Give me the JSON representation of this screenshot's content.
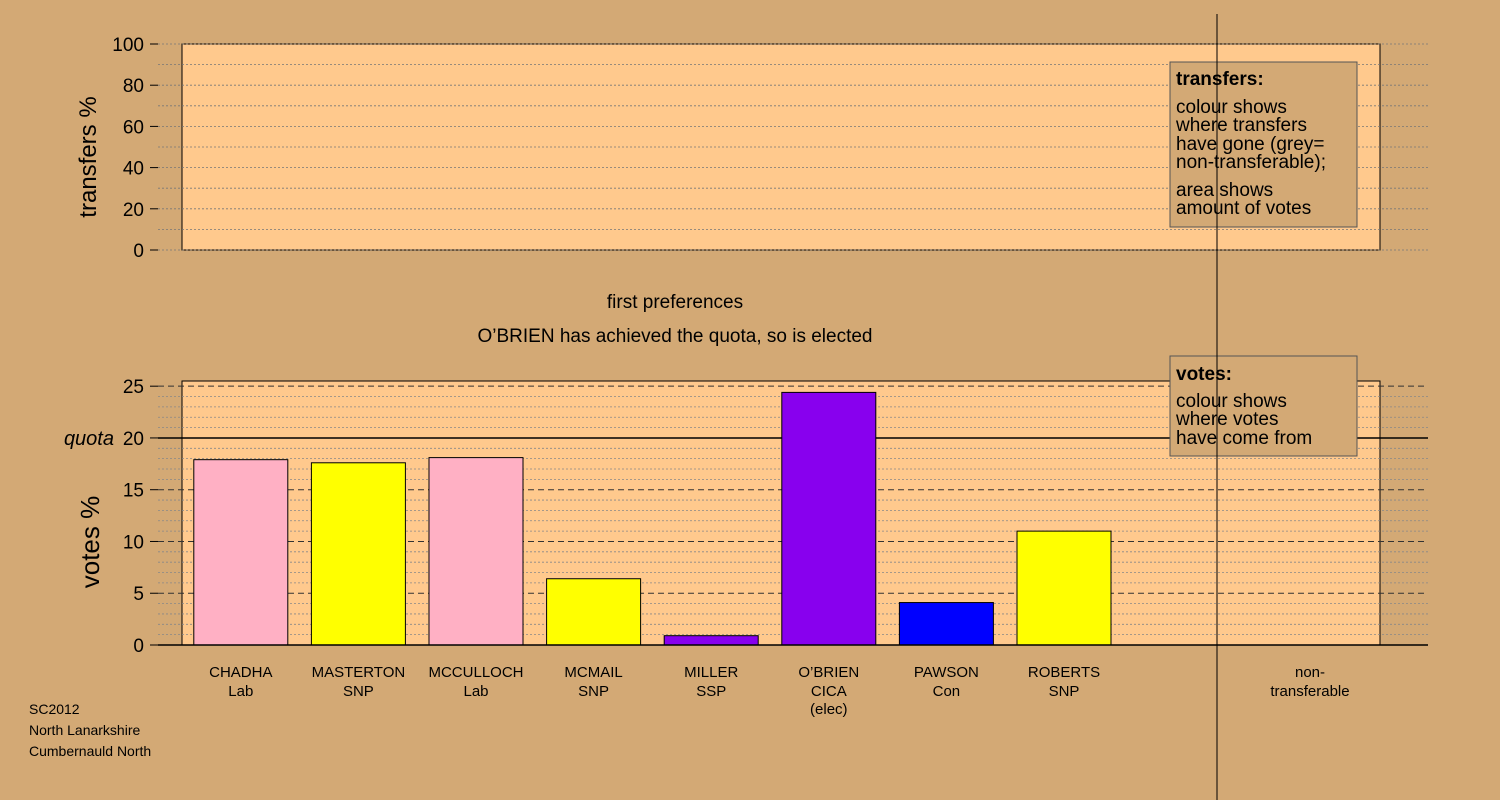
{
  "chart_data": [
    {
      "type": "bar",
      "panel": "transfers",
      "ylabel": "transfers %",
      "ylim": [
        0,
        100
      ],
      "yticks": [
        "0",
        "20",
        "40",
        "60",
        "80",
        "100"
      ],
      "values": [],
      "legend": {
        "title": "transfers:",
        "lines1": [
          "colour shows",
          "where transfers",
          "have gone (grey=",
          "non-transferable);"
        ],
        "lines2": [
          "area shows",
          "amount of votes"
        ]
      }
    },
    {
      "type": "bar",
      "panel": "votes",
      "title": "first preferences",
      "subtitle": "O’BRIEN has achieved the quota, so is elected",
      "ylabel": "votes %",
      "ylim": [
        0,
        25.5
      ],
      "yticks": [
        "0",
        "5",
        "10",
        "15",
        "20",
        "25"
      ],
      "quota": 20,
      "quota_label": "quota",
      "categories": [
        {
          "name": "CHADHA",
          "party": "Lab",
          "note": "",
          "value": 17.9,
          "color": "#ffb0c4"
        },
        {
          "name": "MASTERTON",
          "party": "SNP",
          "note": "",
          "value": 17.6,
          "color": "#ffff00"
        },
        {
          "name": "MCCULLOCH",
          "party": "Lab",
          "note": "",
          "value": 18.1,
          "color": "#ffb0c4"
        },
        {
          "name": "MCMAIL",
          "party": "SNP",
          "note": "",
          "value": 6.4,
          "color": "#ffff00"
        },
        {
          "name": "MILLER",
          "party": "SSP",
          "note": "",
          "value": 0.9,
          "color": "#8800ee"
        },
        {
          "name": "O’BRIEN",
          "party": "CICA",
          "note": "(elec)",
          "value": 24.4,
          "color": "#8800ee"
        },
        {
          "name": "PAWSON",
          "party": "Con",
          "note": "",
          "value": 4.1,
          "color": "#0000ff"
        },
        {
          "name": "ROBERTS",
          "party": "SNP",
          "note": "",
          "value": 11.0,
          "color": "#ffff00"
        }
      ],
      "nontransferable_label": [
        "non-",
        "transferable"
      ],
      "legend": {
        "title": "votes:",
        "lines": [
          "colour shows",
          "where votes",
          "have come from"
        ]
      }
    }
  ],
  "footer": {
    "lines": [
      "SC2012",
      "North Lanarkshire",
      "Cumbernauld North"
    ]
  },
  "colors": {
    "background": "#d3a975",
    "plot_area": "#ffc98d",
    "legend_box": "#d3a975"
  }
}
